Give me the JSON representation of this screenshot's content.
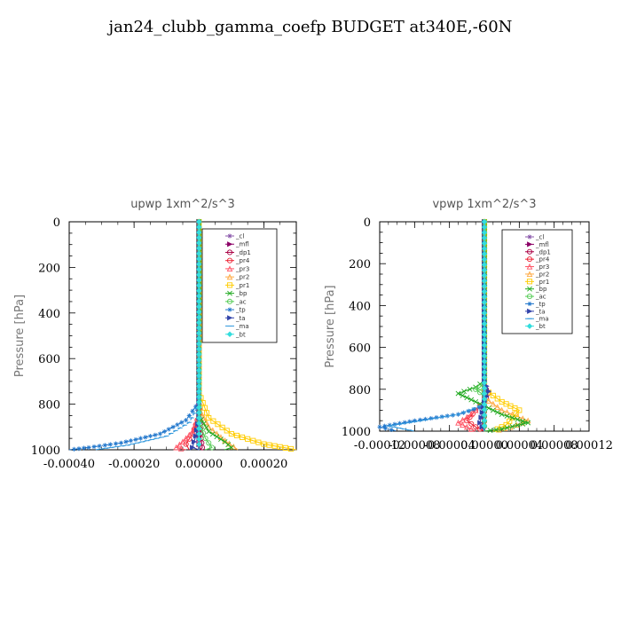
{
  "title": "jan24_clubb_gamma_coefp  BUDGET at340E,-60N",
  "legend_entries": [
    {
      "name": "_cl",
      "color": "#8855aa",
      "marker": "star"
    },
    {
      "name": "_mfl",
      "color": "#8b0066",
      "marker": "arrow"
    },
    {
      "name": "_dp1",
      "color": "#aa0044",
      "marker": "circle"
    },
    {
      "name": "_pr4",
      "color": "#ee2233",
      "marker": "circle"
    },
    {
      "name": "_pr3",
      "color": "#ff5566",
      "marker": "triangle"
    },
    {
      "name": "_pr2",
      "color": "#ffaa44",
      "marker": "triangle"
    },
    {
      "name": "_pr1",
      "color": "#ffcc00",
      "marker": "square"
    },
    {
      "name": "_bp",
      "color": "#22aa22",
      "marker": "x"
    },
    {
      "name": "_ac",
      "color": "#55cc55",
      "marker": "circle"
    },
    {
      "name": "_tp",
      "color": "#2277cc",
      "marker": "star"
    },
    {
      "name": "_ta",
      "color": "#3344aa",
      "marker": "arrow"
    },
    {
      "name": "_ma",
      "color": "#3399dd",
      "marker": "dash"
    },
    {
      "name": "_bt",
      "color": "#33dddd",
      "marker": "diamond"
    }
  ],
  "chart_data": [
    {
      "type": "line",
      "title": "upwp   1xm^2/s^3",
      "ylabel": "Pressure [hPa]",
      "xlabel": "",
      "xlim": [
        -0.0004,
        0.0003
      ],
      "ylim": [
        1000,
        0
      ],
      "x_ticks": [
        -0.0004,
        -0.0002,
        0.0,
        0.0002
      ],
      "x_tick_labels": [
        "-0.00040",
        "-0.00020",
        "0.00000",
        "0.00020"
      ],
      "y_ticks": [
        0,
        200,
        400,
        600,
        800,
        1000
      ],
      "legend_position": "top-right",
      "series": [
        {
          "name": "_cl",
          "points": [
            [
              0,
              0
            ],
            [
              0,
              600
            ],
            [
              0,
              900
            ],
            [
              0,
              1000
            ]
          ]
        },
        {
          "name": "_mfl",
          "points": [
            [
              0,
              0
            ],
            [
              0,
              1000
            ]
          ]
        },
        {
          "name": "_dp1",
          "points": [
            [
              0,
              0
            ],
            [
              0,
              800
            ],
            [
              5e-06,
              930
            ],
            [
              1e-05,
              990
            ],
            [
              5e-06,
              1000
            ]
          ]
        },
        {
          "name": "_pr4",
          "points": [
            [
              0,
              0
            ],
            [
              0,
              850
            ],
            [
              -2e-05,
              930
            ],
            [
              -4e-05,
              975
            ],
            [
              -3e-05,
              1000
            ]
          ]
        },
        {
          "name": "_pr3",
          "points": [
            [
              0,
              0
            ],
            [
              0,
              850
            ],
            [
              -2e-05,
              920
            ],
            [
              -5e-05,
              965
            ],
            [
              -7e-05,
              990
            ],
            [
              -4e-05,
              1000
            ]
          ]
        },
        {
          "name": "_pr2",
          "points": [
            [
              0,
              0
            ],
            [
              0,
              820
            ],
            [
              3e-05,
              900
            ],
            [
              8e-05,
              960
            ],
            [
              0.00012,
              1000
            ]
          ]
        },
        {
          "name": "_pr1",
          "points": [
            [
              0,
              0
            ],
            [
              0,
              750
            ],
            [
              3e-05,
              860
            ],
            [
              0.0001,
              930
            ],
            [
              0.0002,
              975
            ],
            [
              0.0003,
              1000
            ]
          ]
        },
        {
          "name": "_bp",
          "points": [
            [
              0,
              0
            ],
            [
              0,
              850
            ],
            [
              3e-05,
              920
            ],
            [
              8e-05,
              965
            ],
            [
              0.0001,
              990
            ],
            [
              8e-05,
              1000
            ]
          ]
        },
        {
          "name": "_ac",
          "points": [
            [
              0,
              0
            ],
            [
              0,
              880
            ],
            [
              2e-05,
              950
            ],
            [
              4e-05,
              990
            ],
            [
              2e-05,
              1000
            ]
          ]
        },
        {
          "name": "_tp",
          "points": [
            [
              0,
              0
            ],
            [
              0,
              790
            ],
            [
              -4e-05,
              870
            ],
            [
              -0.00012,
              930
            ],
            [
              -0.00024,
              970
            ],
            [
              -0.00034,
              990
            ],
            [
              -0.0004,
              1000
            ]
          ]
        },
        {
          "name": "_ta",
          "points": [
            [
              0,
              0
            ],
            [
              0,
              860
            ],
            [
              -1e-05,
              940
            ],
            [
              -2e-05,
              990
            ],
            [
              0,
              1000
            ]
          ]
        },
        {
          "name": "_ma",
          "points": [
            [
              0,
              0
            ],
            [
              0,
              800
            ],
            [
              -3e-05,
              880
            ],
            [
              -0.0001,
              940
            ],
            [
              -0.00022,
              980
            ],
            [
              -0.00032,
              1000
            ]
          ]
        },
        {
          "name": "_bt",
          "points": [
            [
              0,
              0
            ],
            [
              0,
              1000
            ]
          ]
        }
      ]
    },
    {
      "type": "line",
      "title": "vpwp   1xm^2/s^3",
      "ylabel": "Pressure [hPa]",
      "xlabel": "",
      "xlim": [
        -0.00012,
        0.00012
      ],
      "ylim": [
        1000,
        0
      ],
      "x_ticks": [
        -0.00012,
        -8e-05,
        -4e-05,
        0.0,
        4e-05,
        8e-05,
        0.00012
      ],
      "x_tick_labels": [
        "-0.00012",
        "-0.00008",
        "-0.00004",
        "0.00000",
        "0.00004",
        "0.00008",
        "0.00012"
      ],
      "y_ticks": [
        0,
        200,
        400,
        600,
        800,
        1000
      ],
      "legend_position": "top-right",
      "series": [
        {
          "name": "_cl",
          "points": [
            [
              0,
              0
            ],
            [
              0,
              1000
            ]
          ]
        },
        {
          "name": "_mfl",
          "points": [
            [
              0,
              0
            ],
            [
              0,
              1000
            ]
          ]
        },
        {
          "name": "_dp1",
          "points": [
            [
              0,
              0
            ],
            [
              0,
              780
            ],
            [
              4e-06,
              820
            ],
            [
              0,
              860
            ],
            [
              0,
              1000
            ]
          ]
        },
        {
          "name": "_pr4",
          "points": [
            [
              0,
              0
            ],
            [
              0,
              860
            ],
            [
              -1e-05,
              900
            ],
            [
              -2e-05,
              950
            ],
            [
              -1e-05,
              980
            ],
            [
              0,
              1000
            ]
          ]
        },
        {
          "name": "_pr3",
          "points": [
            [
              0,
              0
            ],
            [
              0,
              860
            ],
            [
              -1.5e-05,
              920
            ],
            [
              -3e-05,
              960
            ],
            [
              -1e-05,
              1000
            ]
          ]
        },
        {
          "name": "_pr2",
          "points": [
            [
              0,
              0
            ],
            [
              0,
              840
            ],
            [
              2e-05,
              900
            ],
            [
              5e-05,
              950
            ],
            [
              3e-05,
              980
            ],
            [
              1e-05,
              1000
            ]
          ]
        },
        {
          "name": "_pr1",
          "points": [
            [
              0,
              0
            ],
            [
              0,
              800
            ],
            [
              2e-05,
              860
            ],
            [
              4e-05,
              900
            ],
            [
              2.5e-05,
              970
            ],
            [
              1e-05,
              1000
            ]
          ]
        },
        {
          "name": "_bp",
          "points": [
            [
              0,
              0
            ],
            [
              0,
              760
            ],
            [
              -1e-05,
              790
            ],
            [
              -3e-05,
              820
            ],
            [
              -1.5e-05,
              850
            ],
            [
              0,
              880
            ],
            [
              2e-05,
              920
            ],
            [
              5e-05,
              960
            ],
            [
              2e-05,
              990
            ],
            [
              0,
              1000
            ]
          ]
        },
        {
          "name": "_ac",
          "points": [
            [
              0,
              0
            ],
            [
              0,
              760
            ],
            [
              -5e-06,
              790
            ],
            [
              -1e-05,
              800
            ],
            [
              0,
              830
            ],
            [
              0,
              1000
            ]
          ]
        },
        {
          "name": "_tp",
          "points": [
            [
              0,
              0
            ],
            [
              0,
              880
            ],
            [
              -3e-05,
              920
            ],
            [
              -8e-05,
              950
            ],
            [
              -0.00012,
              980
            ],
            [
              -0.0001,
              1000
            ]
          ]
        },
        {
          "name": "_ta",
          "points": [
            [
              0,
              0
            ],
            [
              0,
              760
            ],
            [
              5e-06,
              810
            ],
            [
              0,
              860
            ],
            [
              -5e-06,
              960
            ],
            [
              0,
              1000
            ]
          ]
        },
        {
          "name": "_ma",
          "points": [
            [
              0,
              0
            ],
            [
              0,
              870
            ],
            [
              -3e-05,
              920
            ],
            [
              -8e-05,
              955
            ],
            [
              -0.00011,
              975
            ],
            [
              -8e-05,
              1000
            ]
          ]
        },
        {
          "name": "_bt",
          "points": [
            [
              0,
              0
            ],
            [
              0,
              1000
            ]
          ]
        }
      ]
    }
  ]
}
